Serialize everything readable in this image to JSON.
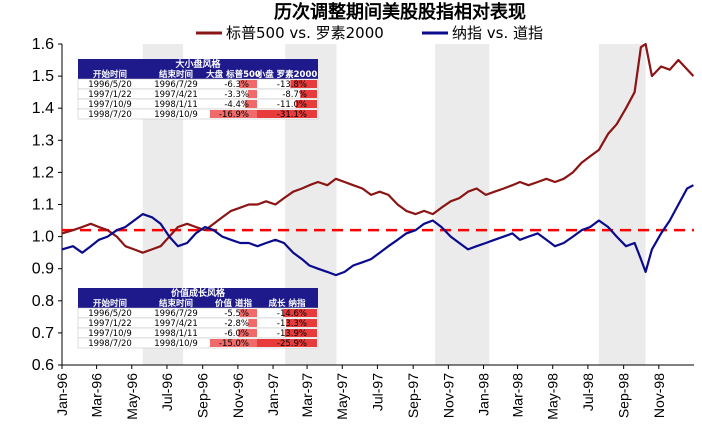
{
  "chart_data": {
    "type": "line",
    "title": "历次调整期间美股股指相对表现",
    "ylim": [
      0.6,
      1.6
    ],
    "yticks": [
      "0.6",
      "0.7",
      "0.8",
      "0.9",
      "1.0",
      "1.1",
      "1.2",
      "1.3",
      "1.4",
      "1.5",
      "1.6"
    ],
    "xlim": [
      "1996-01",
      "1998-12"
    ],
    "xticks": [
      {
        "label": "Jan-96",
        "date": "1996-01"
      },
      {
        "label": "Mar-96",
        "date": "1996-03"
      },
      {
        "label": "May-96",
        "date": "1996-05"
      },
      {
        "label": "Jul-96",
        "date": "1996-07"
      },
      {
        "label": "Sep-96",
        "date": "1996-09"
      },
      {
        "label": "Nov-96",
        "date": "1996-11"
      },
      {
        "label": "Jan-97",
        "date": "1997-01"
      },
      {
        "label": "Mar-97",
        "date": "1997-03"
      },
      {
        "label": "May-97",
        "date": "1997-05"
      },
      {
        "label": "Jul-97",
        "date": "1997-07"
      },
      {
        "label": "Sep-97",
        "date": "1997-09"
      },
      {
        "label": "Nov-97",
        "date": "1997-11"
      },
      {
        "label": "Jan-98",
        "date": "1998-01"
      },
      {
        "label": "Mar-98",
        "date": "1998-03"
      },
      {
        "label": "May-98",
        "date": "1998-05"
      },
      {
        "label": "Jul-98",
        "date": "1998-07"
      },
      {
        "label": "Sep-98",
        "date": "1998-09"
      },
      {
        "label": "Nov-98",
        "date": "1998-11"
      }
    ],
    "reference_line": {
      "y": 1.02,
      "color": "#ff0000",
      "style": "dashed"
    },
    "shaded_periods": [
      {
        "start": "1996-05-20",
        "end": "1996-07-29"
      },
      {
        "start": "1997-01-22",
        "end": "1997-04-21"
      },
      {
        "start": "1997-10-09",
        "end": "1998-01-11"
      },
      {
        "start": "1998-07-20",
        "end": "1998-10-09"
      }
    ],
    "series": [
      {
        "name": "标普500 vs. 罗素2000",
        "color": "#8b1414",
        "points": [
          [
            "1996-01-01",
            1.01
          ],
          [
            "1996-01-20",
            1.02
          ],
          [
            "1996-02-05",
            1.03
          ],
          [
            "1996-02-20",
            1.04
          ],
          [
            "1996-03-05",
            1.03
          ],
          [
            "1996-03-20",
            1.02
          ],
          [
            "1996-04-05",
            1.0
          ],
          [
            "1996-04-20",
            0.97
          ],
          [
            "1996-05-05",
            0.96
          ],
          [
            "1996-05-20",
            0.95
          ],
          [
            "1996-06-05",
            0.96
          ],
          [
            "1996-06-20",
            0.97
          ],
          [
            "1996-07-05",
            1.0
          ],
          [
            "1996-07-20",
            1.03
          ],
          [
            "1996-08-05",
            1.04
          ],
          [
            "1996-08-20",
            1.03
          ],
          [
            "1996-09-05",
            1.02
          ],
          [
            "1996-09-20",
            1.04
          ],
          [
            "1996-10-05",
            1.06
          ],
          [
            "1996-10-20",
            1.08
          ],
          [
            "1996-11-05",
            1.09
          ],
          [
            "1996-11-20",
            1.1
          ],
          [
            "1996-12-05",
            1.1
          ],
          [
            "1996-12-20",
            1.11
          ],
          [
            "1997-01-05",
            1.1
          ],
          [
            "1997-01-20",
            1.12
          ],
          [
            "1997-02-05",
            1.14
          ],
          [
            "1997-02-20",
            1.15
          ],
          [
            "1997-03-05",
            1.16
          ],
          [
            "1997-03-20",
            1.17
          ],
          [
            "1997-04-05",
            1.16
          ],
          [
            "1997-04-20",
            1.18
          ],
          [
            "1997-05-05",
            1.17
          ],
          [
            "1997-05-20",
            1.16
          ],
          [
            "1997-06-05",
            1.15
          ],
          [
            "1997-06-20",
            1.13
          ],
          [
            "1997-07-05",
            1.14
          ],
          [
            "1997-07-20",
            1.13
          ],
          [
            "1997-08-05",
            1.1
          ],
          [
            "1997-08-20",
            1.08
          ],
          [
            "1997-09-05",
            1.07
          ],
          [
            "1997-09-20",
            1.08
          ],
          [
            "1997-10-05",
            1.07
          ],
          [
            "1997-10-20",
            1.09
          ],
          [
            "1997-11-05",
            1.11
          ],
          [
            "1997-11-20",
            1.12
          ],
          [
            "1997-12-05",
            1.14
          ],
          [
            "1997-12-20",
            1.15
          ],
          [
            "1998-01-05",
            1.13
          ],
          [
            "1998-01-20",
            1.14
          ],
          [
            "1998-02-05",
            1.15
          ],
          [
            "1998-02-20",
            1.16
          ],
          [
            "1998-03-05",
            1.17
          ],
          [
            "1998-03-20",
            1.16
          ],
          [
            "1998-04-05",
            1.17
          ],
          [
            "1998-04-20",
            1.18
          ],
          [
            "1998-05-05",
            1.17
          ],
          [
            "1998-05-20",
            1.18
          ],
          [
            "1998-06-05",
            1.2
          ],
          [
            "1998-06-20",
            1.23
          ],
          [
            "1998-07-05",
            1.25
          ],
          [
            "1998-07-20",
            1.27
          ],
          [
            "1998-08-05",
            1.32
          ],
          [
            "1998-08-20",
            1.35
          ],
          [
            "1998-09-05",
            1.4
          ],
          [
            "1998-09-20",
            1.45
          ],
          [
            "1998-10-01",
            1.59
          ],
          [
            "1998-10-09",
            1.6
          ],
          [
            "1998-10-20",
            1.5
          ],
          [
            "1998-11-05",
            1.53
          ],
          [
            "1998-11-20",
            1.52
          ],
          [
            "1998-12-05",
            1.55
          ],
          [
            "1998-12-31",
            1.5
          ]
        ]
      },
      {
        "name": "纳指 vs. 道指",
        "color": "#0a0a8c",
        "points": [
          [
            "1996-01-01",
            0.96
          ],
          [
            "1996-01-20",
            0.97
          ],
          [
            "1996-02-05",
            0.95
          ],
          [
            "1996-02-20",
            0.97
          ],
          [
            "1996-03-05",
            0.99
          ],
          [
            "1996-03-20",
            1.0
          ],
          [
            "1996-04-05",
            1.02
          ],
          [
            "1996-04-20",
            1.03
          ],
          [
            "1996-05-05",
            1.05
          ],
          [
            "1996-05-20",
            1.07
          ],
          [
            "1996-06-05",
            1.06
          ],
          [
            "1996-06-20",
            1.04
          ],
          [
            "1996-07-05",
            1.0
          ],
          [
            "1996-07-20",
            0.97
          ],
          [
            "1996-08-05",
            0.98
          ],
          [
            "1996-08-20",
            1.01
          ],
          [
            "1996-09-05",
            1.03
          ],
          [
            "1996-09-20",
            1.02
          ],
          [
            "1996-10-05",
            1.0
          ],
          [
            "1996-10-20",
            0.99
          ],
          [
            "1996-11-05",
            0.98
          ],
          [
            "1996-11-20",
            0.98
          ],
          [
            "1996-12-05",
            0.97
          ],
          [
            "1996-12-20",
            0.98
          ],
          [
            "1997-01-05",
            0.99
          ],
          [
            "1997-01-20",
            0.98
          ],
          [
            "1997-02-05",
            0.95
          ],
          [
            "1997-02-20",
            0.93
          ],
          [
            "1997-03-05",
            0.91
          ],
          [
            "1997-03-20",
            0.9
          ],
          [
            "1997-04-05",
            0.89
          ],
          [
            "1997-04-20",
            0.88
          ],
          [
            "1997-05-05",
            0.89
          ],
          [
            "1997-05-20",
            0.91
          ],
          [
            "1997-06-05",
            0.92
          ],
          [
            "1997-06-20",
            0.93
          ],
          [
            "1997-07-05",
            0.95
          ],
          [
            "1997-07-20",
            0.97
          ],
          [
            "1997-08-05",
            0.99
          ],
          [
            "1997-08-20",
            1.01
          ],
          [
            "1997-09-05",
            1.02
          ],
          [
            "1997-09-20",
            1.04
          ],
          [
            "1997-10-05",
            1.05
          ],
          [
            "1997-10-20",
            1.03
          ],
          [
            "1997-11-05",
            1.0
          ],
          [
            "1997-11-20",
            0.98
          ],
          [
            "1997-12-05",
            0.96
          ],
          [
            "1997-12-20",
            0.97
          ],
          [
            "1998-01-05",
            0.98
          ],
          [
            "1998-01-20",
            0.99
          ],
          [
            "1998-02-05",
            1.0
          ],
          [
            "1998-02-20",
            1.01
          ],
          [
            "1998-03-05",
            0.99
          ],
          [
            "1998-03-20",
            1.0
          ],
          [
            "1998-04-05",
            1.01
          ],
          [
            "1998-04-20",
            0.99
          ],
          [
            "1998-05-05",
            0.97
          ],
          [
            "1998-05-20",
            0.98
          ],
          [
            "1998-06-05",
            1.0
          ],
          [
            "1998-06-20",
            1.02
          ],
          [
            "1998-07-05",
            1.03
          ],
          [
            "1998-07-20",
            1.05
          ],
          [
            "1998-08-05",
            1.03
          ],
          [
            "1998-08-20",
            1.0
          ],
          [
            "1998-09-05",
            0.97
          ],
          [
            "1998-09-20",
            0.98
          ],
          [
            "1998-10-01",
            0.93
          ],
          [
            "1998-10-09",
            0.89
          ],
          [
            "1998-10-20",
            0.96
          ],
          [
            "1998-11-05",
            1.01
          ],
          [
            "1998-11-20",
            1.05
          ],
          [
            "1998-12-05",
            1.1
          ],
          [
            "1998-12-20",
            1.15
          ],
          [
            "1998-12-31",
            1.16
          ]
        ]
      }
    ],
    "tables": [
      {
        "title": "大小盘风格",
        "headers": [
          "开始时间",
          "结束时间",
          "大盘 标普500",
          "小盘 罗素2000"
        ],
        "rows": [
          {
            "start": "1996/5/20",
            "end": "1996/7/29",
            "a": "-6.3%",
            "b": "-13.8%",
            "a_val": -6.3,
            "b_val": -13.8
          },
          {
            "start": "1997/1/22",
            "end": "1997/4/21",
            "a": "-3.3%",
            "b": "-8.7%",
            "a_val": -3.3,
            "b_val": -8.7
          },
          {
            "start": "1997/10/9",
            "end": "1998/1/11",
            "a": "-4.4%",
            "b": "-11.0%",
            "a_val": -4.4,
            "b_val": -11.0
          },
          {
            "start": "1998/7/20",
            "end": "1998/10/9",
            "a": "-16.9%",
            "b": "-31.1%",
            "a_val": -16.9,
            "b_val": -31.1
          }
        ]
      },
      {
        "title": "价值成长风格",
        "headers": [
          "开始时间",
          "结束时间",
          "价值 道指",
          "成长 纳指"
        ],
        "rows": [
          {
            "start": "1996/5/20",
            "end": "1996/7/29",
            "a": "-5.5%",
            "b": "-14.6%",
            "a_val": -5.5,
            "b_val": -14.6
          },
          {
            "start": "1997/1/22",
            "end": "1997/4/21",
            "a": "-2.8%",
            "b": "-13.3%",
            "a_val": -2.8,
            "b_val": -13.3
          },
          {
            "start": "1997/10/9",
            "end": "1998/1/11",
            "a": "-6.0%",
            "b": "-13.9%",
            "a_val": -6.0,
            "b_val": -13.9
          },
          {
            "start": "1998/7/20",
            "end": "1998/10/9",
            "a": "-15.0%",
            "b": "-25.9%",
            "a_val": -15.0,
            "b_val": -25.9
          }
        ]
      }
    ]
  }
}
